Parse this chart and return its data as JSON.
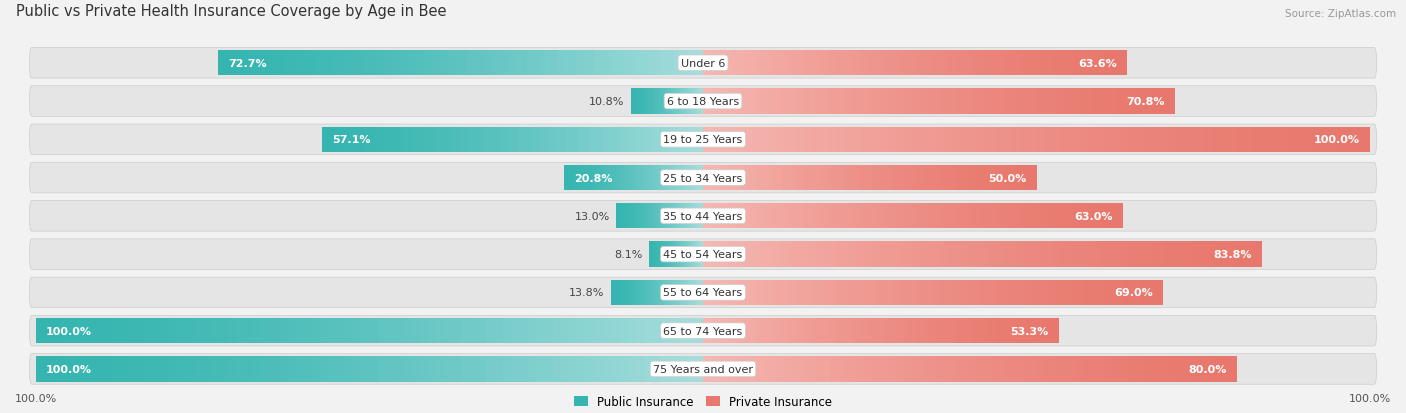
{
  "title": "Public vs Private Health Insurance Coverage by Age in Bee",
  "source": "Source: ZipAtlas.com",
  "categories": [
    "Under 6",
    "6 to 18 Years",
    "19 to 25 Years",
    "25 to 34 Years",
    "35 to 44 Years",
    "45 to 54 Years",
    "55 to 64 Years",
    "65 to 74 Years",
    "75 Years and over"
  ],
  "public_values": [
    72.7,
    10.8,
    57.1,
    20.8,
    13.0,
    8.1,
    13.8,
    100.0,
    100.0
  ],
  "private_values": [
    63.6,
    70.8,
    100.0,
    50.0,
    63.0,
    83.8,
    69.0,
    53.3,
    80.0
  ],
  "public_color": "#36b5b0",
  "private_color": "#e8786d",
  "public_color_light": "#a8dedd",
  "private_color_light": "#f5b8b3",
  "bg_color": "#f2f2f2",
  "row_bg_color": "#e5e5e5",
  "title_fontsize": 10.5,
  "label_fontsize": 8,
  "value_fontsize": 8,
  "bar_height": 0.68,
  "max_value": 100.0,
  "xlim_left": -105,
  "xlim_right": 105
}
